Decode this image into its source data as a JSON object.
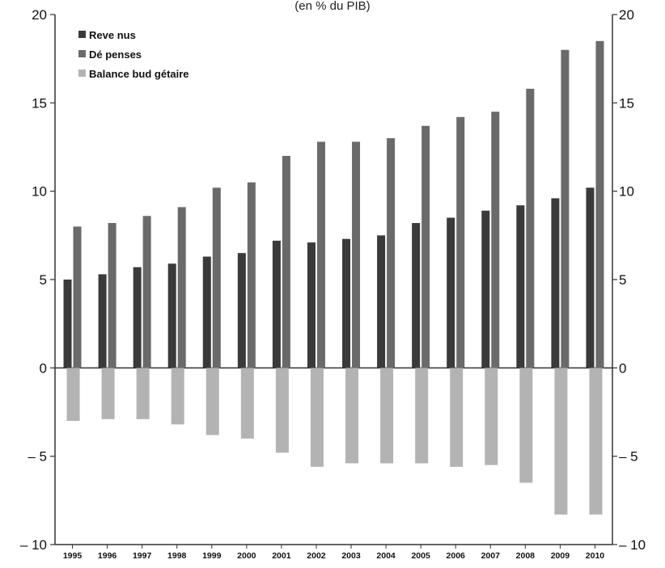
{
  "chart_data": {
    "type": "bar",
    "subtitle": "(en  % du PIB)",
    "categories": [
      "1995",
      "1996",
      "1997",
      "1998",
      "1999",
      "2000",
      "2001",
      "2002",
      "2003",
      "2004",
      "2005",
      "2006",
      "2007",
      "2008",
      "2009",
      "2010"
    ],
    "series": [
      {
        "name": "Reve nus",
        "color": "#3a3a3a",
        "values": [
          5.0,
          5.3,
          5.7,
          5.9,
          6.3,
          6.5,
          7.2,
          7.1,
          7.3,
          7.5,
          8.2,
          8.5,
          8.9,
          9.2,
          9.6,
          10.2
        ]
      },
      {
        "name": "Dé penses",
        "color": "#6a6a6a",
        "values": [
          8.0,
          8.2,
          8.6,
          9.1,
          10.2,
          10.5,
          12.0,
          12.8,
          12.8,
          13.0,
          13.7,
          14.2,
          14.5,
          15.8,
          18.0,
          18.5
        ]
      },
      {
        "name": "Balance bud gétaire",
        "color": "#b3b3b3",
        "values": [
          -3.0,
          -2.9,
          -2.9,
          -3.2,
          -3.8,
          -4.0,
          -4.8,
          -5.6,
          -5.4,
          -5.4,
          -5.4,
          -5.6,
          -5.5,
          -6.5,
          -8.3,
          -8.3
        ]
      }
    ],
    "ylim": [
      -10,
      20
    ],
    "yticks": [
      {
        "value": 20,
        "label": "20"
      },
      {
        "value": 15,
        "label": "15"
      },
      {
        "value": 10,
        "label": "10"
      },
      {
        "value": 5,
        "label": "5"
      },
      {
        "value": 0,
        "label": "0"
      },
      {
        "value": -5,
        "label": "– 5"
      },
      {
        "value": -10,
        "label": "– 10"
      }
    ],
    "grid": false,
    "legend_position": "top-left"
  }
}
